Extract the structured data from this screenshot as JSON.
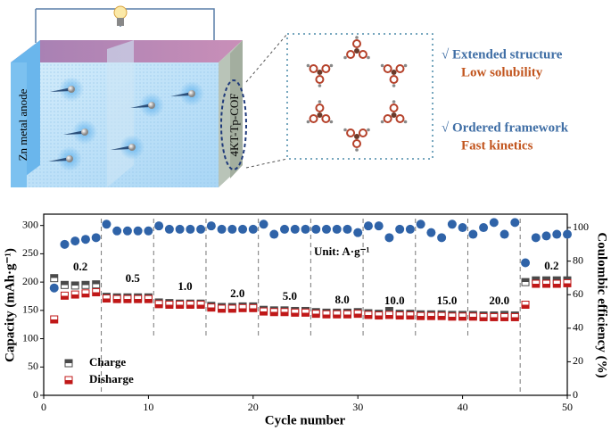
{
  "schematic": {
    "anode_label": "Zn metal anode",
    "cof_label": "4KT-Tp-COF",
    "features": [
      {
        "title": "√ Extended structure",
        "subtitle": "Low solubility"
      },
      {
        "title": "√ Ordered framework",
        "subtitle": "Fast kinetics"
      }
    ]
  },
  "chart_data": {
    "type": "scatter",
    "x_label": "Cycle number",
    "y_label": "Capacity (mAh·g⁻¹)",
    "y2_label": "Coulombic efficiency (%)",
    "unit_note": "Unit: A·g⁻¹",
    "rate_labels": [
      "0.2",
      "0.5",
      "1.0",
      "2.0",
      "5.0",
      "8.0",
      "10.0",
      "15.0",
      "20.0",
      "0.2"
    ],
    "x": [
      1,
      2,
      3,
      4,
      5,
      6,
      7,
      8,
      9,
      10,
      11,
      12,
      13,
      14,
      15,
      16,
      17,
      18,
      19,
      20,
      21,
      22,
      23,
      24,
      25,
      26,
      27,
      28,
      29,
      30,
      31,
      32,
      33,
      34,
      35,
      36,
      37,
      38,
      39,
      40,
      41,
      42,
      43,
      44,
      45,
      46,
      47,
      48,
      49,
      50
    ],
    "series": [
      {
        "name": "Charge",
        "color": "#4a4a4a",
        "values": [
          207,
          195,
          194,
          195,
          196,
          174,
          173,
          173,
          173,
          173,
          164,
          163,
          162,
          162,
          162,
          158,
          156,
          156,
          157,
          157,
          151,
          150,
          150,
          149,
          149,
          147,
          146,
          146,
          146,
          147,
          145,
          144,
          149,
          144,
          144,
          143,
          143,
          143,
          142,
          142,
          142,
          141,
          141,
          142,
          141,
          200,
          203,
          203,
          203,
          203
        ]
      },
      {
        "name": "Disharge",
        "color": "#c01818",
        "values": [
          134,
          176,
          178,
          180,
          182,
          171,
          170,
          170,
          170,
          170,
          161,
          160,
          160,
          160,
          160,
          155,
          153,
          153,
          154,
          154,
          148,
          147,
          147,
          146,
          146,
          144,
          143,
          143,
          143,
          144,
          142,
          141,
          142,
          141,
          141,
          140,
          140,
          140,
          139,
          139,
          139,
          138,
          138,
          138,
          138,
          160,
          197,
          197,
          197,
          198
        ]
      },
      {
        "name": "Coulombic efficiency",
        "color": "#2f63a8",
        "axis": "y2",
        "values": [
          64,
          90,
          92,
          93,
          94,
          102,
          98,
          98,
          98,
          98,
          101,
          99,
          99,
          99,
          99,
          101,
          99,
          99,
          99,
          99,
          102,
          96,
          99,
          99,
          99,
          99,
          99,
          99,
          99,
          97,
          101,
          101,
          94,
          99,
          99,
          102,
          97,
          94,
          102,
          100,
          96,
          100,
          103,
          96,
          103,
          79,
          94,
          95,
          96,
          96
        ]
      }
    ],
    "xlim": [
      0,
      50
    ],
    "xticks": [
      0,
      10,
      20,
      30,
      40,
      50
    ],
    "ylim": [
      0,
      320
    ],
    "yticks": [
      0,
      50,
      100,
      150,
      200,
      250,
      300
    ],
    "y2lim": [
      0,
      108
    ],
    "y2ticks": [
      0,
      20,
      40,
      60,
      80,
      100
    ]
  }
}
